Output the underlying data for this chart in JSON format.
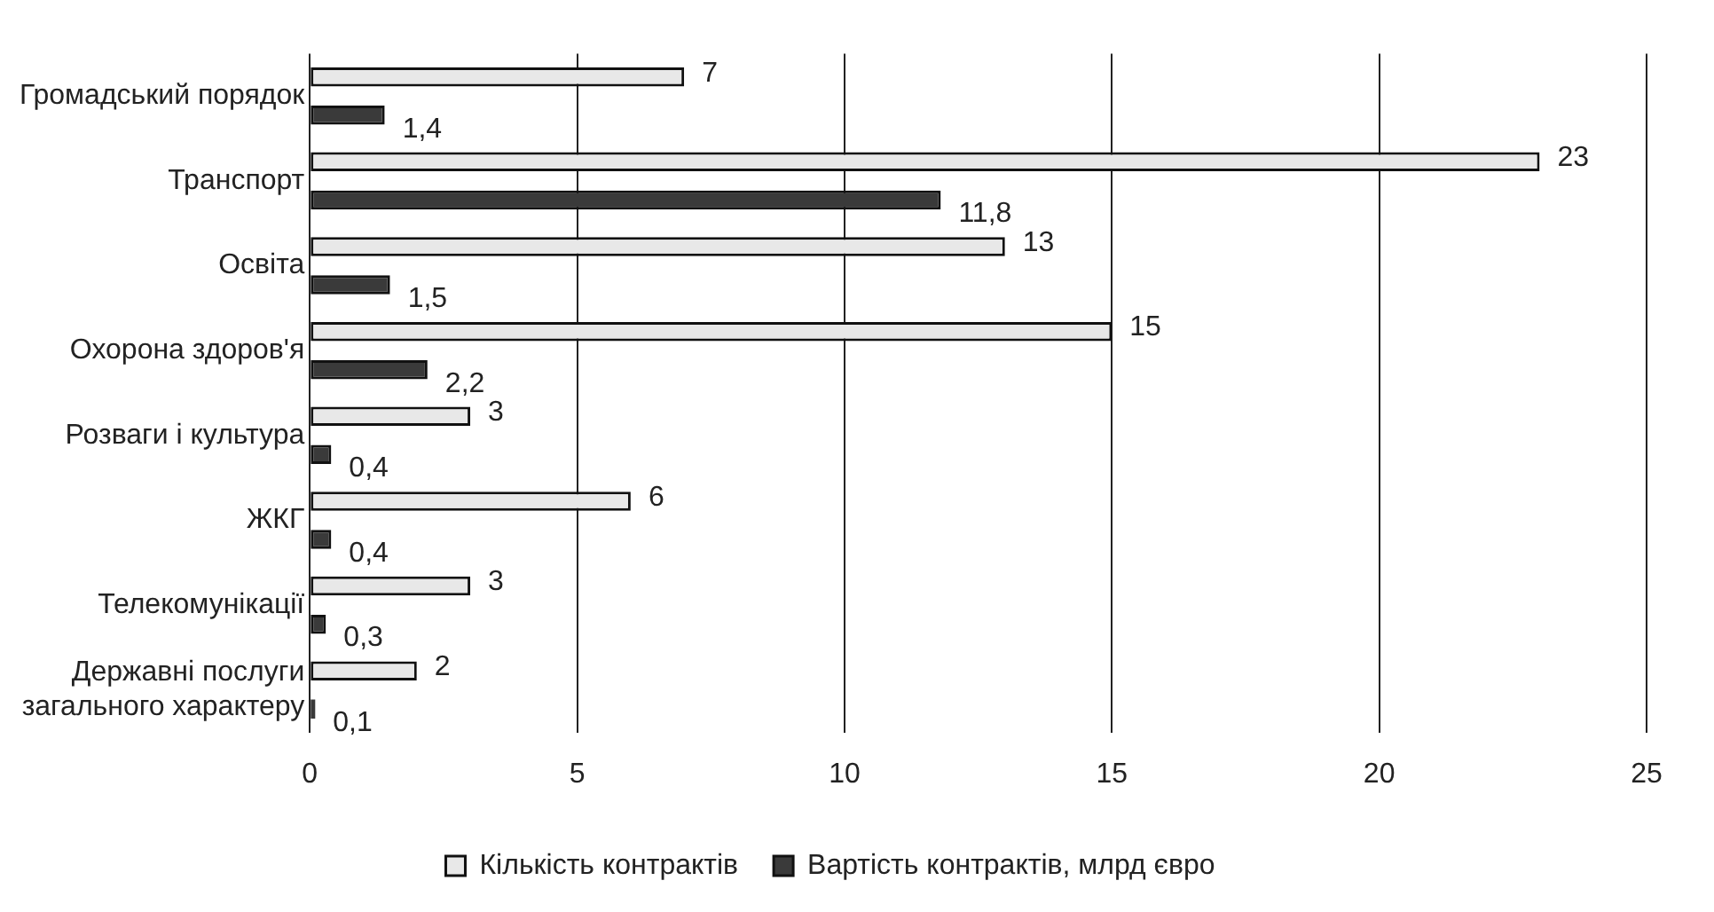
{
  "chart_data": {
    "type": "bar",
    "orientation": "horizontal",
    "categories": [
      "Громадський порядок",
      "Транспорт",
      "Освіта",
      "Охорона здоров'я",
      "Розваги і культура",
      "ЖКГ",
      "Телекомунікації",
      "Державні послуги загального характеру"
    ],
    "series": [
      {
        "name": "Кількість контрактів",
        "color": "#e8e8e8",
        "values": [
          7,
          23,
          13,
          15,
          3,
          6,
          3,
          2
        ],
        "value_labels": [
          "7",
          "23",
          "13",
          "15",
          "3",
          "6",
          "3",
          "2"
        ]
      },
      {
        "name": "Вартість контрактів, млрд євро",
        "color": "#3a3a3a",
        "values": [
          1.4,
          11.8,
          1.5,
          2.2,
          0.4,
          0.4,
          0.3,
          0.1
        ],
        "value_labels": [
          "1,4",
          "11,8",
          "1,5",
          "2,2",
          "0,4",
          "0,4",
          "0,3",
          "0,1"
        ]
      }
    ],
    "xlim": [
      0,
      25
    ],
    "xticks": [
      0,
      5,
      10,
      15,
      20,
      25
    ],
    "grid": "x",
    "legend": "bottom"
  }
}
